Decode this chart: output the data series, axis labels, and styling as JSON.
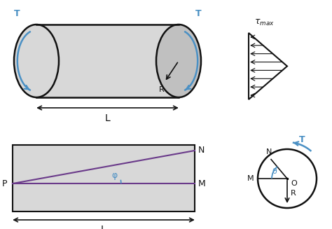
{
  "bg_color": "#ffffff",
  "cylinder_color": "#d8d8d8",
  "cylinder_edge_color": "#111111",
  "blue_color": "#4a90c4",
  "purple_color": "#6a3a8a",
  "black": "#111111",
  "gray_face": "#d0d0d0",
  "white": "#ffffff",
  "L_label": "L",
  "R_label": "R",
  "T_label": "T",
  "phi_label": "φ",
  "theta_label": "θ",
  "N_label": "N",
  "M_label": "M",
  "P_label": "P",
  "O_label": "O",
  "figw": 4.74,
  "figh": 3.27,
  "dpi": 100
}
